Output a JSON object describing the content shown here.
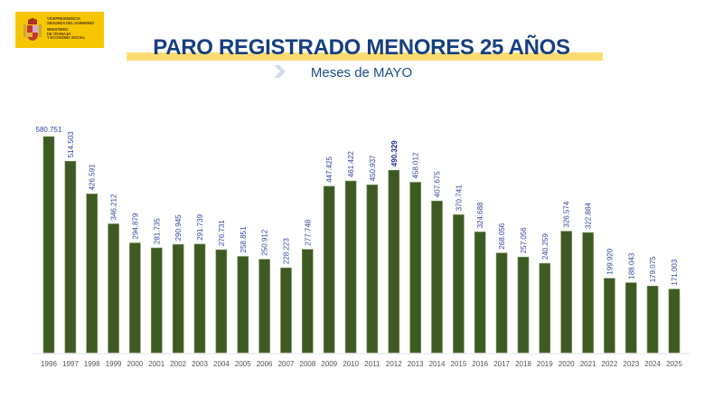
{
  "logo": {
    "line1": "VICEPRESIDENCIA\nSEGUNDA DEL GOBIERNO",
    "line2": "MINISTERIO\nDE TRABAJO\nY ECONOMÍA SOCIAL"
  },
  "colors": {
    "bar": "#3d5a22",
    "title": "#163f7e",
    "band": "#fbdc72",
    "logo_bg": "#f6c600"
  },
  "chart_data": {
    "type": "bar",
    "title": "PARO REGISTRADO MENORES 25 AÑOS",
    "subtitle": "Meses de MAYO",
    "xlabel": "",
    "ylabel": "",
    "ylim": [
      0,
      600000
    ],
    "grid": false,
    "categories": [
      "1996",
      "1997",
      "1998",
      "1999",
      "2000",
      "2001",
      "2002",
      "2003",
      "2004",
      "2005",
      "2006",
      "2007",
      "2008",
      "2009",
      "2010",
      "2011",
      "2012",
      "2013",
      "2014",
      "2015",
      "2016",
      "2017",
      "2018",
      "2019",
      "2020",
      "2021",
      "2022",
      "2023",
      "2024",
      "2025"
    ],
    "values": [
      580751,
      514503,
      426591,
      346212,
      294879,
      281735,
      290945,
      291739,
      276731,
      258851,
      250912,
      228223,
      277748,
      447425,
      461422,
      450937,
      490329,
      458012,
      407675,
      370741,
      324688,
      268056,
      257056,
      240259,
      326574,
      322884,
      199920,
      188043,
      179075,
      171003
    ],
    "labels": [
      "580.751",
      "514.503",
      "426.591",
      "346.212",
      "294.879",
      "281.735",
      "290.945",
      "291.739",
      "276.731",
      "258.851",
      "250.912",
      "228.223",
      "277.748",
      "447.425",
      "461.422",
      "450.937",
      "490.329",
      "458.012",
      "407.675",
      "370.741",
      "324.688",
      "268.056",
      "257.056",
      "240.259",
      "326.574",
      "322.884",
      "199.920",
      "188.043",
      "179.075",
      "171.003"
    ],
    "highlight": "2012"
  }
}
